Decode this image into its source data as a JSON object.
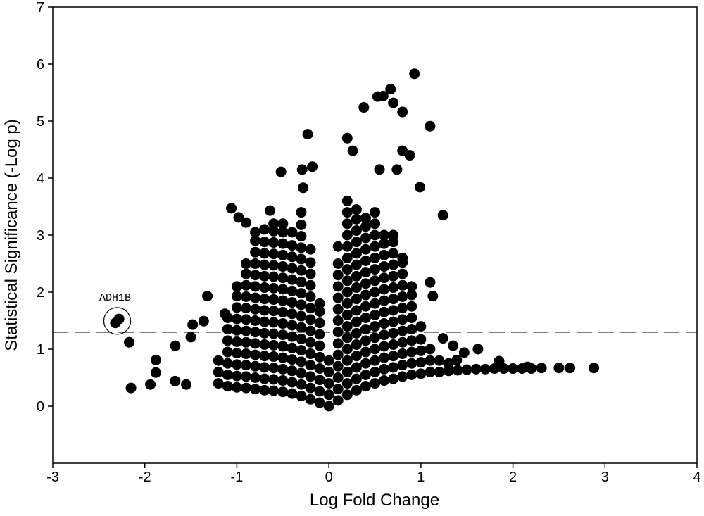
{
  "chart_data": {
    "type": "scatter",
    "xlabel": "Log Fold Change",
    "ylabel": "Statistical Significance (-Log p)",
    "xlim": [
      -3,
      4
    ],
    "ylim": [
      -1,
      7
    ],
    "xticks": [
      -3,
      -2,
      -1,
      0,
      1,
      2,
      3,
      4
    ],
    "yticks": [
      0,
      1,
      2,
      3,
      4,
      5,
      6,
      7
    ],
    "color": "#000000",
    "hline": 1.3,
    "annotation": "ADH1B",
    "x": [
      -1.2,
      -1.2,
      -1.2,
      -1.1,
      -1.1,
      -1.1,
      -1.1,
      -1.1,
      -1.1,
      -1.1,
      -1.0,
      -1.0,
      -1.0,
      -1.0,
      -1.0,
      -1.0,
      -1.0,
      -1.0,
      -1.0,
      -1.0,
      -0.9,
      -0.9,
      -0.9,
      -0.9,
      -0.9,
      -0.9,
      -0.9,
      -0.9,
      -0.9,
      -0.9,
      -0.9,
      -0.9,
      -0.8,
      -0.8,
      -0.8,
      -0.8,
      -0.8,
      -0.8,
      -0.8,
      -0.8,
      -0.8,
      -0.8,
      -0.8,
      -0.8,
      -0.8,
      -0.8,
      -0.8,
      -0.7,
      -0.7,
      -0.7,
      -0.7,
      -0.7,
      -0.7,
      -0.7,
      -0.7,
      -0.7,
      -0.7,
      -0.7,
      -0.7,
      -0.7,
      -0.7,
      -0.7,
      -0.6,
      -0.6,
      -0.6,
      -0.6,
      -0.6,
      -0.6,
      -0.6,
      -0.6,
      -0.6,
      -0.6,
      -0.6,
      -0.6,
      -0.6,
      -0.6,
      -0.6,
      -0.6,
      -0.5,
      -0.5,
      -0.5,
      -0.5,
      -0.5,
      -0.5,
      -0.5,
      -0.5,
      -0.5,
      -0.5,
      -0.5,
      -0.5,
      -0.5,
      -0.5,
      -0.5,
      -0.5,
      -0.4,
      -0.4,
      -0.4,
      -0.4,
      -0.4,
      -0.4,
      -0.4,
      -0.4,
      -0.4,
      -0.4,
      -0.4,
      -0.4,
      -0.4,
      -0.4,
      -0.4,
      -0.3,
      -0.3,
      -0.3,
      -0.3,
      -0.3,
      -0.3,
      -0.3,
      -0.3,
      -0.3,
      -0.3,
      -0.3,
      -0.3,
      -0.3,
      -0.3,
      -0.3,
      -0.3,
      -0.3,
      -0.2,
      -0.2,
      -0.2,
      -0.2,
      -0.2,
      -0.2,
      -0.2,
      -0.2,
      -0.2,
      -0.2,
      -0.2,
      -0.2,
      -0.2,
      -0.2,
      -0.1,
      -0.1,
      -0.1,
      -0.1,
      -0.1,
      -0.1,
      -0.1,
      -0.1,
      -0.1,
      -0.1,
      0.0,
      0.0,
      0.0,
      0.0,
      0.0,
      0.1,
      0.1,
      0.1,
      0.1,
      0.1,
      0.1,
      0.1,
      0.1,
      0.1,
      0.1,
      0.1,
      0.1,
      0.1,
      0.1,
      0.2,
      0.2,
      0.2,
      0.2,
      0.2,
      0.2,
      0.2,
      0.2,
      0.2,
      0.2,
      0.2,
      0.2,
      0.2,
      0.2,
      0.2,
      0.2,
      0.2,
      0.2,
      0.3,
      0.3,
      0.3,
      0.3,
      0.3,
      0.3,
      0.3,
      0.3,
      0.3,
      0.3,
      0.3,
      0.3,
      0.3,
      0.3,
      0.3,
      0.3,
      0.3,
      0.4,
      0.4,
      0.4,
      0.4,
      0.4,
      0.4,
      0.4,
      0.4,
      0.4,
      0.4,
      0.4,
      0.4,
      0.4,
      0.4,
      0.4,
      0.4,
      0.5,
      0.5,
      0.5,
      0.5,
      0.5,
      0.5,
      0.5,
      0.5,
      0.5,
      0.5,
      0.5,
      0.5,
      0.5,
      0.5,
      0.5,
      0.5,
      0.6,
      0.6,
      0.6,
      0.6,
      0.6,
      0.6,
      0.6,
      0.6,
      0.6,
      0.6,
      0.6,
      0.6,
      0.6,
      0.6,
      0.7,
      0.7,
      0.7,
      0.7,
      0.7,
      0.7,
      0.7,
      0.7,
      0.7,
      0.7,
      0.7,
      0.7,
      0.7,
      0.7,
      0.8,
      0.8,
      0.8,
      0.8,
      0.8,
      0.8,
      0.8,
      0.8,
      0.8,
      0.8,
      0.8,
      0.8,
      0.9,
      0.9,
      0.9,
      0.9,
      0.9,
      0.9,
      0.9,
      0.9,
      0.9,
      1.0,
      1.0,
      1.0,
      1.0,
      1.0,
      1.1,
      1.1,
      1.1,
      1.2,
      1.2,
      1.3,
      1.3,
      1.4,
      1.5,
      1.6,
      1.7,
      1.8,
      1.9,
      2.0,
      2.1,
      2.2,
      0.93,
      0.67,
      0.59,
      0.53,
      0.7,
      0.38,
      0.8,
      1.1,
      -0.23,
      0.2,
      0.26,
      0.8,
      0.88,
      -0.29,
      -0.18,
      -0.52,
      0.74,
      0.55,
      0.99,
      -0.28,
      -1.06,
      -0.64,
      1.24,
      -0.98,
      -0.9,
      1.1,
      1.13,
      -1.32,
      -1.13,
      -1.48,
      -1.36,
      -2.17,
      -1.67,
      -1.5,
      1.24,
      1.35,
      1.62,
      1.47,
      -1.88,
      -1.88,
      -2.15,
      -1.94,
      -1.67,
      -1.55,
      1.85,
      1.39,
      2.16,
      2.31,
      2.5,
      2.62,
      2.88,
      -2.32,
      -2.28
    ],
    "values": [
      0.4,
      0.6,
      0.8,
      0.35,
      0.55,
      0.75,
      0.95,
      1.15,
      1.35,
      1.55,
      0.33,
      0.53,
      0.73,
      0.93,
      1.13,
      1.33,
      1.53,
      1.73,
      1.93,
      2.1,
      0.32,
      0.52,
      0.72,
      0.92,
      1.12,
      1.32,
      1.52,
      1.72,
      1.92,
      2.12,
      2.32,
      2.5,
      0.3,
      0.5,
      0.7,
      0.9,
      1.1,
      1.3,
      1.5,
      1.7,
      1.9,
      2.1,
      2.3,
      2.5,
      2.7,
      2.9,
      3.05,
      0.28,
      0.48,
      0.68,
      0.88,
      1.08,
      1.28,
      1.48,
      1.68,
      1.88,
      2.08,
      2.28,
      2.48,
      2.68,
      2.88,
      3.1,
      0.27,
      0.47,
      0.67,
      0.87,
      1.07,
      1.27,
      1.47,
      1.67,
      1.87,
      2.07,
      2.27,
      2.47,
      2.67,
      2.87,
      3.07,
      3.2,
      0.25,
      0.45,
      0.65,
      0.85,
      1.05,
      1.25,
      1.45,
      1.65,
      1.85,
      2.05,
      2.25,
      2.45,
      2.65,
      2.85,
      3.05,
      3.2,
      0.22,
      0.42,
      0.62,
      0.82,
      1.02,
      1.22,
      1.42,
      1.62,
      1.82,
      2.02,
      2.22,
      2.42,
      2.62,
      2.82,
      3.05,
      0.18,
      0.38,
      0.58,
      0.78,
      0.98,
      1.18,
      1.38,
      1.58,
      1.78,
      1.98,
      2.18,
      2.38,
      2.58,
      2.78,
      2.98,
      3.18,
      3.4,
      0.12,
      0.32,
      0.52,
      0.72,
      0.92,
      1.12,
      1.32,
      1.52,
      1.72,
      1.92,
      2.12,
      2.32,
      2.52,
      2.75,
      0.06,
      0.26,
      0.46,
      0.66,
      0.86,
      1.06,
      1.26,
      1.46,
      1.66,
      1.8,
      0,
      0.2,
      0.4,
      0.6,
      0.8,
      0.1,
      0.3,
      0.5,
      0.7,
      0.9,
      1.1,
      1.3,
      1.5,
      1.7,
      1.9,
      2.1,
      2.3,
      2.5,
      2.8,
      0.2,
      0.4,
      0.6,
      0.8,
      1.0,
      1.2,
      1.4,
      1.6,
      1.8,
      2.0,
      2.2,
      2.4,
      2.6,
      2.8,
      3.0,
      3.2,
      3.4,
      3.6,
      0.28,
      0.48,
      0.68,
      0.88,
      1.08,
      1.28,
      1.48,
      1.68,
      1.88,
      2.08,
      2.28,
      2.48,
      2.68,
      2.88,
      3.08,
      3.28,
      3.45,
      0.35,
      0.55,
      0.75,
      0.95,
      1.15,
      1.35,
      1.55,
      1.75,
      1.95,
      2.15,
      2.35,
      2.55,
      2.75,
      2.95,
      3.15,
      3.3,
      0.4,
      0.6,
      0.8,
      1.0,
      1.2,
      1.4,
      1.6,
      1.8,
      2.0,
      2.2,
      2.4,
      2.6,
      2.8,
      3.0,
      3.2,
      3.4,
      0.45,
      0.65,
      0.85,
      1.05,
      1.25,
      1.45,
      1.65,
      1.85,
      2.05,
      2.25,
      2.45,
      2.65,
      2.85,
      3.0,
      0.48,
      0.68,
      0.88,
      1.08,
      1.28,
      1.48,
      1.68,
      1.88,
      2.08,
      2.28,
      2.48,
      2.68,
      2.88,
      3.0,
      0.52,
      0.72,
      0.92,
      1.12,
      1.32,
      1.52,
      1.72,
      1.92,
      2.12,
      2.32,
      2.52,
      2.6,
      0.55,
      0.75,
      0.95,
      1.15,
      1.35,
      1.55,
      1.75,
      1.95,
      2.1,
      0.57,
      0.77,
      0.97,
      1.17,
      1.4,
      0.6,
      0.8,
      1.0,
      0.6,
      0.8,
      0.62,
      0.75,
      0.63,
      0.64,
      0.65,
      0.65,
      0.66,
      0.66,
      0.66,
      0.66,
      0.66,
      5.83,
      5.56,
      5.44,
      5.43,
      5.32,
      5.24,
      5.16,
      4.91,
      4.77,
      4.7,
      4.48,
      4.48,
      4.4,
      4.15,
      4.2,
      4.11,
      4.15,
      4.15,
      3.84,
      3.83,
      3.47,
      3.43,
      3.35,
      3.31,
      3.22,
      2.17,
      1.93,
      1.93,
      1.62,
      1.43,
      1.49,
      1.12,
      1.06,
      1.21,
      1.19,
      1.06,
      1.0,
      0.94,
      0.81,
      0.59,
      0.32,
      0.38,
      0.44,
      0.38,
      0.79,
      0.81,
      0.69,
      0.67,
      0.67,
      0.67,
      0.67,
      1.46,
      1.53
    ]
  }
}
